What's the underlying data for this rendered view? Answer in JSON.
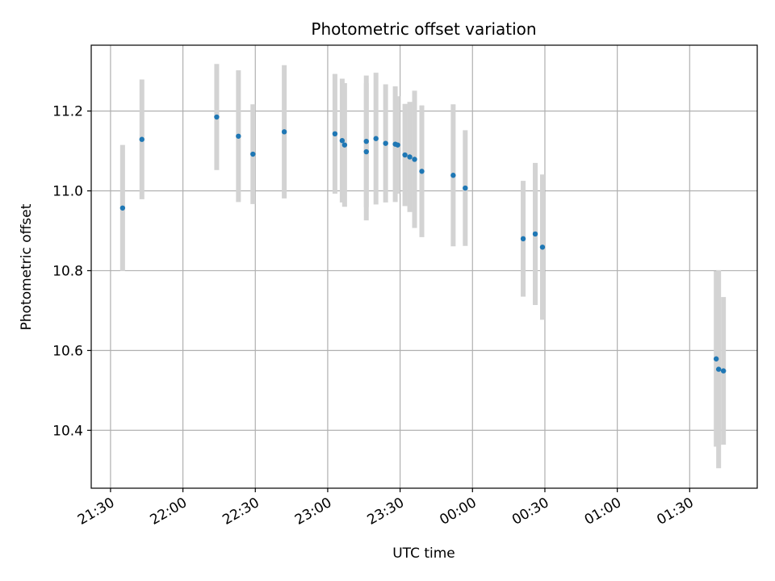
{
  "chart_data": {
    "type": "scatter",
    "title": "Photometric offset variation",
    "xlabel": "UTC time",
    "ylabel": "Photometric offset",
    "x_axis_kind": "time",
    "xlim": [
      "21:22",
      "01:58 +1d"
    ],
    "ylim": [
      10.255,
      11.365
    ],
    "x_ticks": [
      "21:30",
      "22:00",
      "22:30",
      "23:00",
      "23:30",
      "00:00",
      "00:30",
      "01:00",
      "01:30"
    ],
    "y_ticks": [
      "10.4",
      "10.6",
      "10.8",
      "11.0",
      "11.2"
    ],
    "y_tick_values": [
      10.4,
      10.6,
      10.8,
      11.0,
      11.2
    ],
    "grid": true,
    "point_color": "#1f77b4",
    "errorbar_color": "#d3d3d3",
    "points": [
      {
        "t": "21:35",
        "y": 10.957,
        "err": 0.158
      },
      {
        "t": "21:43",
        "y": 11.129,
        "err": 0.15
      },
      {
        "t": "22:14",
        "y": 11.185,
        "err": 0.133
      },
      {
        "t": "22:23",
        "y": 11.137,
        "err": 0.165
      },
      {
        "t": "22:29",
        "y": 11.092,
        "err": 0.125
      },
      {
        "t": "22:42",
        "y": 11.148,
        "err": 0.167
      },
      {
        "t": "23:03",
        "y": 11.143,
        "err": 0.15
      },
      {
        "t": "23:06",
        "y": 11.126,
        "err": 0.155
      },
      {
        "t": "23:07",
        "y": 11.115,
        "err": 0.155
      },
      {
        "t": "23:16",
        "y": 11.098,
        "err": 0.172
      },
      {
        "t": "23:16",
        "y": 11.124,
        "err": 0.165
      },
      {
        "t": "23:20",
        "y": 11.131,
        "err": 0.165
      },
      {
        "t": "23:24",
        "y": 11.119,
        "err": 0.148
      },
      {
        "t": "23:28",
        "y": 11.117,
        "err": 0.145
      },
      {
        "t": "23:29",
        "y": 11.115,
        "err": 0.122
      },
      {
        "t": "23:32",
        "y": 11.09,
        "err": 0.128
      },
      {
        "t": "23:34",
        "y": 11.085,
        "err": 0.138
      },
      {
        "t": "23:36",
        "y": 11.079,
        "err": 0.172
      },
      {
        "t": "23:39",
        "y": 11.049,
        "err": 0.165
      },
      {
        "t": "23:52",
        "y": 11.039,
        "err": 0.178
      },
      {
        "t": "23:57",
        "y": 11.007,
        "err": 0.145
      },
      {
        "t": "00:21",
        "y": 10.88,
        "err": 0.145
      },
      {
        "t": "00:26",
        "y": 10.892,
        "err": 0.178
      },
      {
        "t": "00:29",
        "y": 10.859,
        "err": 0.182
      },
      {
        "t": "01:41",
        "y": 10.579,
        "err": 0.22
      },
      {
        "t": "01:42",
        "y": 10.553,
        "err": 0.248
      },
      {
        "t": "01:44",
        "y": 10.549,
        "err": 0.185
      }
    ]
  }
}
